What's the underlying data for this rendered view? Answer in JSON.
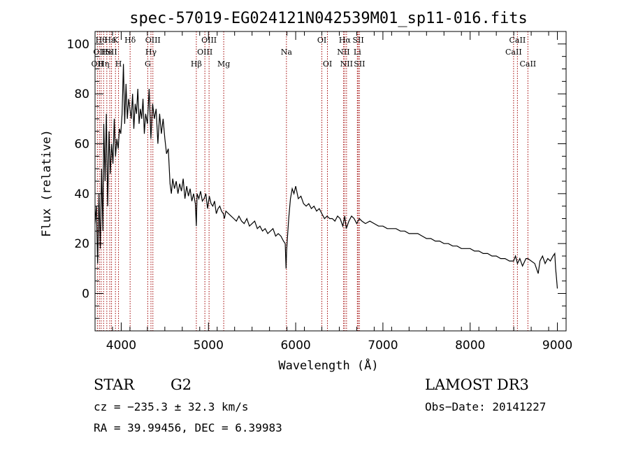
{
  "chart_data": {
    "type": "line",
    "title": "spec-57019-EG024121N042539M01_sp11-016.fits",
    "xlabel": "Wavelength (Å)",
    "ylabel": "Flux (relative)",
    "xlim": [
      3700,
      9100
    ],
    "ylim": [
      -15,
      105
    ],
    "xticks": [
      4000,
      5000,
      6000,
      7000,
      8000,
      9000
    ],
    "xtick_labels": [
      "4000",
      "5000",
      "6000",
      "7000",
      "8000",
      "9000"
    ],
    "yticks": [
      0,
      20,
      40,
      60,
      80,
      100
    ],
    "ytick_labels": [
      "0",
      "20",
      "40",
      "60",
      "80",
      "100"
    ],
    "line_color": "#000000",
    "marker_color": "#a00000",
    "series": [
      {
        "name": "flux",
        "x": [
          3700,
          3715,
          3730,
          3745,
          3760,
          3775,
          3790,
          3800,
          3815,
          3830,
          3845,
          3860,
          3875,
          3890,
          3905,
          3920,
          3935,
          3950,
          3965,
          3980,
          3995,
          4010,
          4025,
          4040,
          4055,
          4070,
          4085,
          4100,
          4115,
          4130,
          4145,
          4160,
          4175,
          4190,
          4205,
          4220,
          4235,
          4250,
          4265,
          4280,
          4300,
          4320,
          4340,
          4360,
          4380,
          4400,
          4420,
          4440,
          4460,
          4480,
          4500,
          4520,
          4540,
          4560,
          4575,
          4590,
          4610,
          4630,
          4650,
          4670,
          4690,
          4710,
          4730,
          4750,
          4770,
          4790,
          4810,
          4830,
          4850,
          4861,
          4870,
          4890,
          4910,
          4930,
          4950,
          4970,
          4990,
          5010,
          5030,
          5050,
          5070,
          5090,
          5110,
          5130,
          5150,
          5170,
          5183,
          5200,
          5230,
          5260,
          5290,
          5320,
          5350,
          5380,
          5410,
          5440,
          5470,
          5500,
          5530,
          5560,
          5590,
          5620,
          5650,
          5680,
          5710,
          5740,
          5770,
          5800,
          5830,
          5860,
          5880,
          5890,
          5896,
          5905,
          5920,
          5940,
          5960,
          5980,
          6000,
          6030,
          6060,
          6090,
          6120,
          6150,
          6180,
          6210,
          6240,
          6270,
          6300,
          6330,
          6360,
          6390,
          6420,
          6450,
          6480,
          6510,
          6540,
          6563,
          6580,
          6610,
          6640,
          6670,
          6700,
          6730,
          6760,
          6800,
          6850,
          6900,
          6950,
          7000,
          7050,
          7100,
          7150,
          7200,
          7250,
          7300,
          7350,
          7400,
          7450,
          7500,
          7550,
          7600,
          7650,
          7700,
          7750,
          7800,
          7850,
          7900,
          7950,
          8000,
          8050,
          8100,
          8150,
          8200,
          8250,
          8300,
          8350,
          8400,
          8450,
          8498,
          8520,
          8542,
          8570,
          8600,
          8640,
          8662,
          8700,
          8740,
          8780,
          8800,
          8830,
          8860,
          8890,
          8920,
          8950,
          8970,
          8980,
          8990,
          9000
        ],
        "y": [
          28,
          35,
          12,
          40,
          18,
          50,
          25,
          68,
          45,
          72,
          35,
          65,
          48,
          60,
          52,
          70,
          55,
          62,
          58,
          66,
          64,
          72,
          92,
          68,
          84,
          70,
          78,
          74,
          70,
          80,
          66,
          76,
          72,
          82,
          68,
          74,
          70,
          78,
          64,
          72,
          68,
          82,
          62,
          76,
          70,
          74,
          60,
          72,
          64,
          70,
          62,
          56,
          58,
          44,
          40,
          46,
          42,
          45,
          40,
          44,
          41,
          46,
          38,
          43,
          39,
          42,
          37,
          40,
          36,
          27,
          40,
          38,
          41,
          37,
          38,
          40,
          34,
          39,
          36,
          35,
          37,
          32,
          34,
          35,
          33,
          32,
          30,
          33,
          32,
          31,
          30,
          29,
          31,
          29,
          28,
          30,
          27,
          28,
          29,
          26,
          27,
          25,
          26,
          24,
          25,
          26,
          23,
          24,
          23,
          21,
          20,
          10,
          17,
          22,
          30,
          38,
          42,
          40,
          43,
          38,
          39,
          36,
          35,
          36,
          34,
          35,
          33,
          34,
          32,
          30,
          31,
          30,
          30,
          29,
          31,
          30,
          27,
          31,
          26,
          29,
          31,
          30,
          28,
          30,
          29,
          28,
          29,
          28,
          27,
          27,
          26,
          26,
          26,
          25,
          25,
          24,
          24,
          24,
          23,
          22,
          22,
          21,
          21,
          20,
          20,
          19,
          19,
          18,
          18,
          18,
          17,
          17,
          16,
          16,
          15,
          15,
          14,
          14,
          13,
          13,
          15,
          12,
          14,
          11,
          14,
          14,
          13,
          12,
          8,
          13,
          15,
          12,
          14,
          13,
          15,
          16,
          10,
          6,
          2
        ]
      }
    ],
    "line_markers": [
      {
        "x": 3727,
        "label": "OII",
        "row": 3
      },
      {
        "x": 3750,
        "label": "OII",
        "row": 2
      },
      {
        "x": 3770,
        "label": "Hθ",
        "row": 1
      },
      {
        "x": 3798,
        "label": "Hη",
        "row": 3
      },
      {
        "x": 3835,
        "label": "He",
        "row": 2
      },
      {
        "x": 3869,
        "label": "Hε",
        "row": 1
      },
      {
        "x": 3889,
        "label": "SII",
        "row": 2
      },
      {
        "x": 3934,
        "label": "K",
        "row": 1
      },
      {
        "x": 3969,
        "label": "H",
        "row": 3
      },
      {
        "x": 4102,
        "label": "Hδ",
        "row": 1
      },
      {
        "x": 4304,
        "label": "G",
        "row": 3
      },
      {
        "x": 4341,
        "label": "Hγ",
        "row": 2
      },
      {
        "x": 4363,
        "label": "OIII",
        "row": 1
      },
      {
        "x": 4861,
        "label": "Hβ",
        "row": 3
      },
      {
        "x": 4959,
        "label": "OIII",
        "row": 2
      },
      {
        "x": 5007,
        "label": "OIII",
        "row": 1
      },
      {
        "x": 5175,
        "label": "Mg",
        "row": 3
      },
      {
        "x": 5894,
        "label": "Na",
        "row": 2
      },
      {
        "x": 6300,
        "label": "OI",
        "row": 1
      },
      {
        "x": 6364,
        "label": "OI",
        "row": 3
      },
      {
        "x": 6548,
        "label": "NII",
        "row": 2
      },
      {
        "x": 6563,
        "label": "Hα",
        "row": 1
      },
      {
        "x": 6583,
        "label": "NII",
        "row": 3
      },
      {
        "x": 6707,
        "label": "Li",
        "row": 2
      },
      {
        "x": 6717,
        "label": "SII",
        "row": 1
      },
      {
        "x": 6731,
        "label": "SII",
        "row": 3
      },
      {
        "x": 8498,
        "label": "CaII",
        "row": 2
      },
      {
        "x": 8542,
        "label": "CaII",
        "row": 1
      },
      {
        "x": 8662,
        "label": "CaII",
        "row": 3
      }
    ]
  },
  "info": {
    "class": "STAR",
    "subclass": "G2",
    "survey": "LAMOST DR3",
    "cz_line": "cz = −235.3 ± 32.3 km/s",
    "obs_date": "Obs−Date: 20141227",
    "ra_dec": "RA =  39.99456, DEC =   6.39983"
  }
}
